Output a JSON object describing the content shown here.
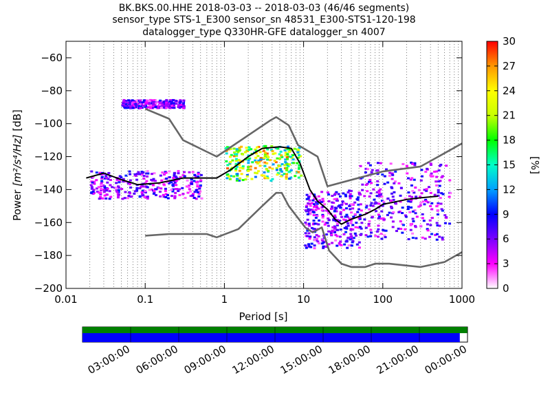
{
  "title": {
    "line1": "BK.BKS.00.HHE   2018-03-03 -- 2018-03-03  (46/46 segments)",
    "line2": "sensor_type STS-1_E300 sensor_sn 48531_E300-STS1-120-198",
    "line3": "datalogger_type Q330HR-GFE datalogger_sn 4007"
  },
  "chart_data": [
    {
      "type": "heatmap",
      "x_scale": "log",
      "xlim": [
        0.01,
        1000
      ],
      "ylim": [
        -200,
        -50
      ],
      "xlabel": "Period [s]",
      "ylabel_prefix": "Power ",
      "ylabel_units": "[m²/s⁴/Hz]",
      "ylabel_suffix": " [dB]",
      "x_ticks": [
        {
          "value": 0.01,
          "label": "0.01"
        },
        {
          "value": 0.1,
          "label": "0.1"
        },
        {
          "value": 1,
          "label": "1"
        },
        {
          "value": 10,
          "label": "10"
        },
        {
          "value": 100,
          "label": "100"
        },
        {
          "value": 1000,
          "label": "1000"
        }
      ],
      "y_ticks": [
        {
          "value": -60,
          "label": "−60"
        },
        {
          "value": -80,
          "label": "−80"
        },
        {
          "value": -100,
          "label": "−100"
        },
        {
          "value": -120,
          "label": "−120"
        },
        {
          "value": -140,
          "label": "−140"
        },
        {
          "value": -160,
          "label": "−160"
        },
        {
          "value": -180,
          "label": "−180"
        },
        {
          "value": -200,
          "label": "−200"
        }
      ],
      "grid": "dotted vertical at log periods",
      "colorbar": {
        "label": "[%]",
        "range": [
          0,
          30
        ],
        "ticks": [
          {
            "value": 0,
            "label": "0"
          },
          {
            "value": 3,
            "label": "3"
          },
          {
            "value": 6,
            "label": "6"
          },
          {
            "value": 9,
            "label": "9"
          },
          {
            "value": 12,
            "label": "12"
          },
          {
            "value": 15,
            "label": "15"
          },
          {
            "value": 18,
            "label": "18"
          },
          {
            "value": 21,
            "label": "21"
          },
          {
            "value": 24,
            "label": "24"
          },
          {
            "value": 27,
            "label": "27"
          },
          {
            "value": 30,
            "label": "30"
          }
        ],
        "colormap": [
          "#ffffff",
          "#ff00ff",
          "#7a00ff",
          "#0000ff",
          "#00a0ff",
          "#00ffc8",
          "#00ff00",
          "#c8ff00",
          "#ffff00",
          "#ff9600",
          "#ff0000"
        ]
      },
      "series": [
        {
          "name": "",
          "color": "#666666",
          "points": [
            [
              0.1,
              -91
            ],
            [
              0.2,
              -97
            ],
            [
              0.3,
              -110
            ],
            [
              0.8,
              -120
            ],
            [
              3.8,
              -98
            ],
            [
              4.5,
              -96
            ],
            [
              6.5,
              -101
            ],
            [
              8.5,
              -113
            ],
            [
              15,
              -120
            ],
            [
              20,
              -138
            ],
            [
              100,
              -129
            ],
            [
              300,
              -126
            ],
            [
              1000,
              -112
            ]
          ]
        },
        {
          "name": "",
          "color": "#666666",
          "points": [
            [
              0.1,
              -168
            ],
            [
              0.2,
              -167
            ],
            [
              0.6,
              -167
            ],
            [
              0.8,
              -169
            ],
            [
              1.5,
              -164
            ],
            [
              3,
              -150
            ],
            [
              4.5,
              -142
            ],
            [
              5.3,
              -142
            ],
            [
              6.5,
              -150
            ],
            [
              10.5,
              -163
            ],
            [
              13,
              -166
            ],
            [
              17,
              -163
            ],
            [
              21,
              -177
            ],
            [
              30,
              -185
            ],
            [
              40,
              -187
            ],
            [
              60,
              -187
            ],
            [
              80,
              -185
            ],
            [
              120,
              -185
            ],
            [
              300,
              -187
            ],
            [
              600,
              -184
            ],
            [
              1000,
              -178
            ]
          ]
        },
        {
          "name": "",
          "color": "#000000",
          "points": [
            [
              0.018,
              -133
            ],
            [
              0.03,
              -130
            ],
            [
              0.05,
              -134
            ],
            [
              0.08,
              -137
            ],
            [
              0.15,
              -136
            ],
            [
              0.3,
              -133
            ],
            [
              0.8,
              -133
            ],
            [
              1.2,
              -128
            ],
            [
              2,
              -120
            ],
            [
              3,
              -115
            ],
            [
              5,
              -114
            ],
            [
              7,
              -115
            ],
            [
              9,
              -124
            ],
            [
              12,
              -140
            ],
            [
              15,
              -147
            ],
            [
              20,
              -152
            ],
            [
              25,
              -158
            ],
            [
              30,
              -161
            ],
            [
              40,
              -158
            ],
            [
              60,
              -155
            ],
            [
              80,
              -152
            ],
            [
              100,
              -149
            ],
            [
              200,
              -146
            ],
            [
              300,
              -145
            ],
            [
              500,
              -144
            ]
          ]
        }
      ],
      "density_features": [
        {
          "x": [
            0.02,
            0.5
          ],
          "y": [
            -145,
            -128
          ],
          "color": "#8800ff"
        },
        {
          "x": [
            0.05,
            0.3
          ],
          "y": [
            -90,
            -85
          ],
          "color": "#ff00ff"
        },
        {
          "x": [
            1,
            9
          ],
          "y": [
            -134,
            -113
          ],
          "color": "#00ff00"
        },
        {
          "x": [
            10,
            50
          ],
          "y": [
            -175,
            -140
          ],
          "color": "#ff00ff"
        },
        {
          "x": [
            50,
            700
          ],
          "y": [
            -170,
            -123
          ],
          "color": "#0000ff"
        }
      ]
    },
    {
      "type": "timeline",
      "ticks": [
        "03:00:00",
        "06:00:00",
        "09:00:00",
        "12:00:00",
        "15:00:00",
        "18:00:00",
        "21:00:00",
        "00:00:00"
      ],
      "bar_colors": {
        "top": "#008000",
        "bottom": "#0000ff"
      },
      "coverage_fraction": 0.98
    }
  ]
}
